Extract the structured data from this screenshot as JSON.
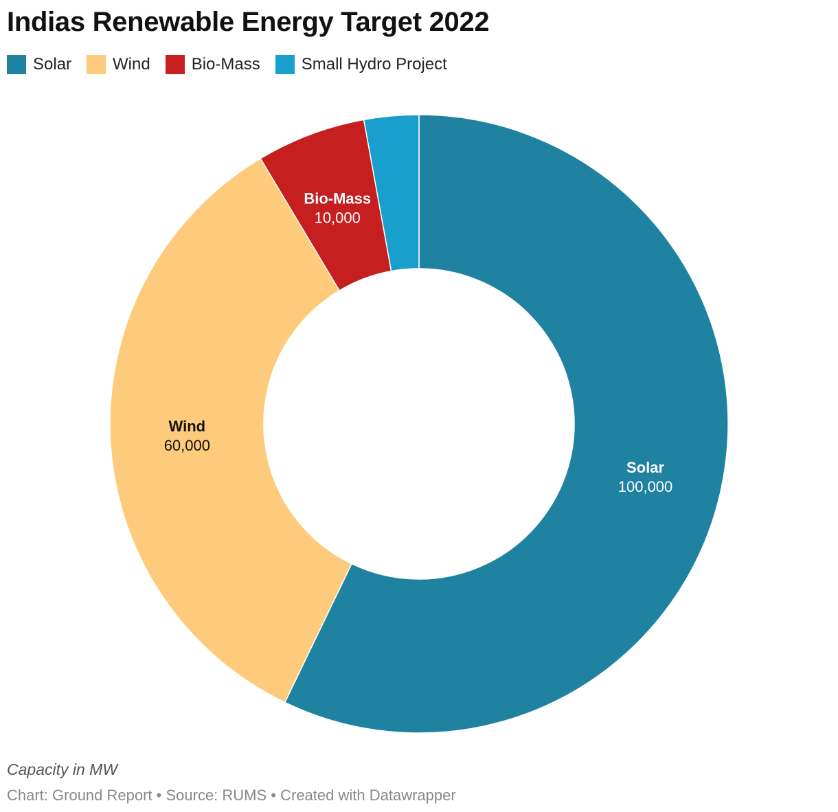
{
  "title": "Indias Renewable Energy Target 2022",
  "notes": "Capacity in MW",
  "footer": "Chart: Ground Report • Source: RUMS • Created with Datawrapper",
  "chart_data": {
    "type": "pie",
    "variant": "donut",
    "title": "Indias Renewable Energy Target 2022",
    "legend": "top-left",
    "slices": [
      {
        "name": "Solar",
        "value": 100000,
        "value_label": "100,000",
        "color": "#1f82a1",
        "label_color": "#ffffff"
      },
      {
        "name": "Wind",
        "value": 60000,
        "value_label": "60,000",
        "color": "#fdcb7b",
        "label_color": "#111111"
      },
      {
        "name": "Bio-Mass",
        "value": 10000,
        "value_label": "10,000",
        "color": "#c51f1f",
        "label_color": "#ffffff"
      },
      {
        "name": "Small Hydro Project",
        "value": 5000,
        "value_label": "",
        "color": "#199fcb",
        "label_color": "#ffffff"
      }
    ]
  }
}
